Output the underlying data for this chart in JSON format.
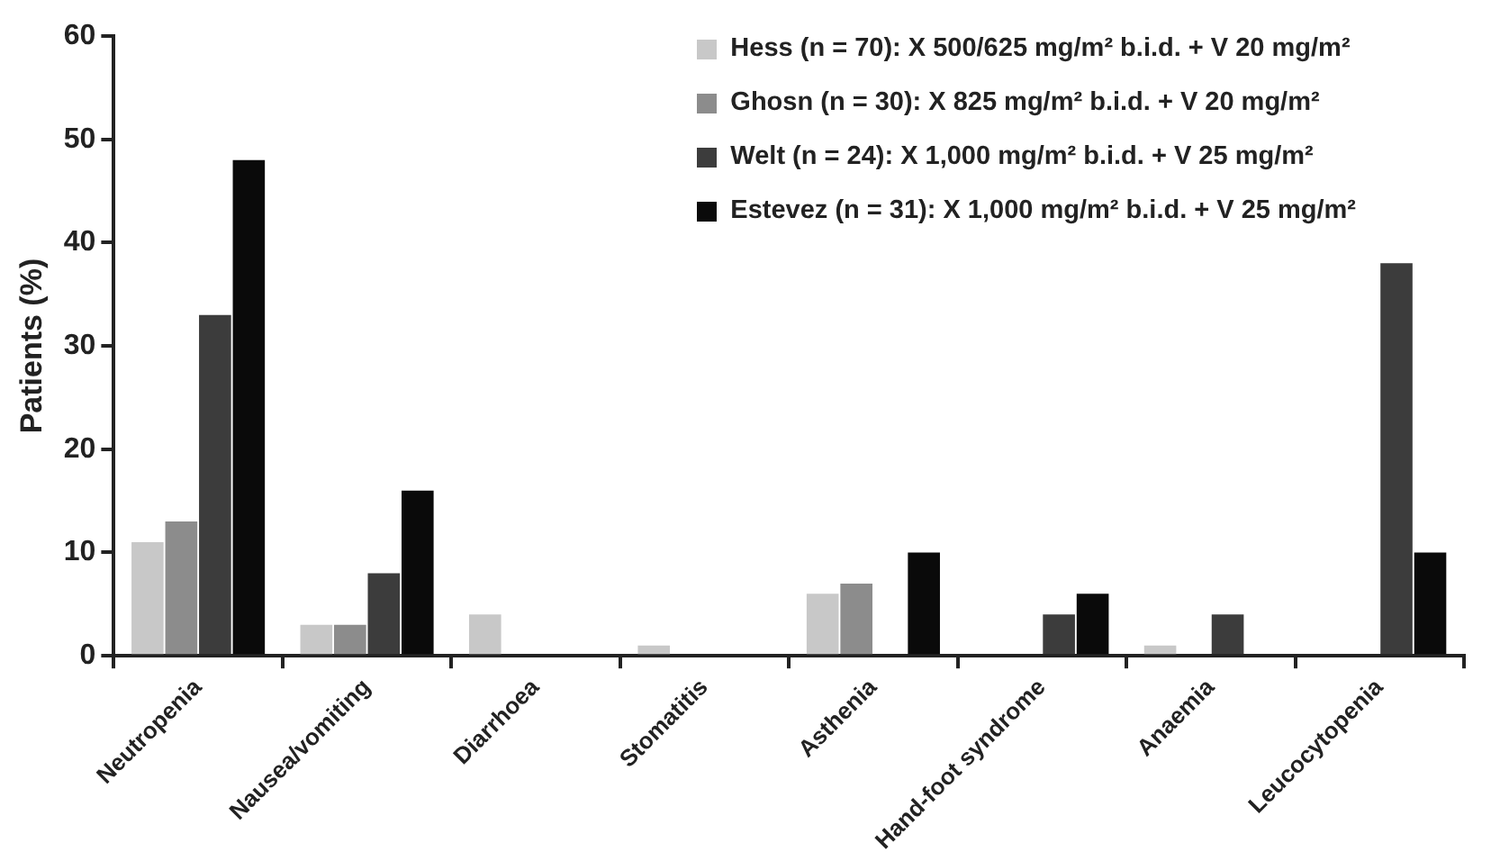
{
  "chart_data": {
    "type": "bar",
    "ylabel": "Patients (%)",
    "categories": [
      "Neutropenia",
      "Nausea/vomiting",
      "Diarrhoea",
      "Stomatitis",
      "Asthenia",
      "Hand-foot syndrome",
      "Anaemia",
      "Leucocytopenia"
    ],
    "series": [
      {
        "name": "Hess (n = 70): X 500/625 mg/m² b.i.d. + V 20 mg/m²",
        "color": "#c8c8c8",
        "values": [
          11,
          3,
          4,
          1,
          6,
          0,
          1,
          0
        ]
      },
      {
        "name": "Ghosn (n = 30): X 825 mg/m² b.i.d. + V 20 mg/m²",
        "color": "#8c8c8c",
        "values": [
          13,
          3,
          0,
          0,
          7,
          0,
          0,
          0
        ]
      },
      {
        "name": "Welt (n = 24): X 1,000 mg/m² b.i.d. + V 25 mg/m²",
        "color": "#3c3c3c",
        "values": [
          33,
          8,
          0,
          0,
          0,
          4,
          4,
          38
        ]
      },
      {
        "name": "Estevez (n = 31): X 1,000 mg/m² b.i.d. + V 25 mg/m²",
        "color": "#0a0a0a",
        "values": [
          48,
          16,
          0,
          0,
          10,
          6,
          0,
          10
        ]
      }
    ],
    "ylim": [
      0,
      60
    ],
    "yticks": [
      0,
      10,
      20,
      30,
      40,
      50,
      60
    ],
    "grid": false,
    "legend": "top right"
  }
}
